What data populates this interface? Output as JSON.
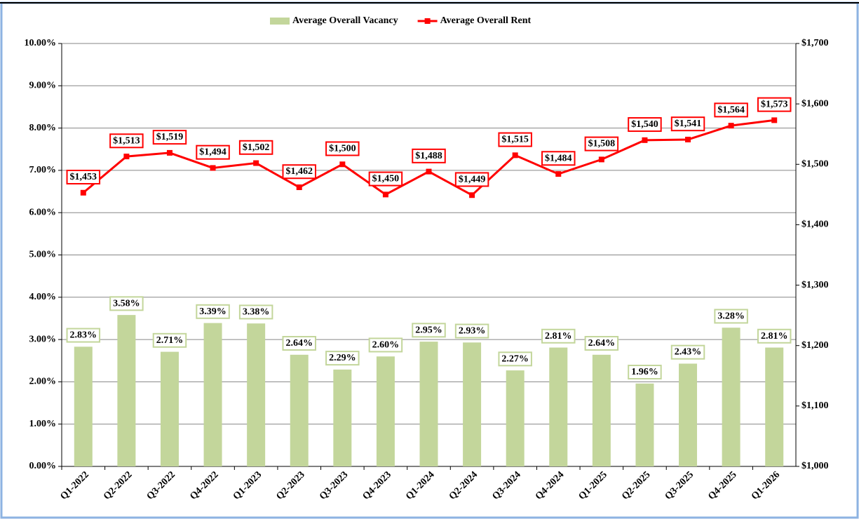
{
  "chart_data": {
    "type": "combo",
    "categories": [
      "Q1-2022",
      "Q2-2022",
      "Q3-2022",
      "Q4-2022",
      "Q1-2023",
      "Q2-2023",
      "Q3-2023",
      "Q4-2023",
      "Q1-2024",
      "Q2-2024",
      "Q3-2024",
      "Q4-2024",
      "Q1-2025",
      "Q2-2025",
      "Q3-2025",
      "Q4-2025",
      "Q1-2026"
    ],
    "series": [
      {
        "name": "Average Overall Vacancy",
        "type": "bar",
        "color": "#c3d69b",
        "values": [
          2.83,
          3.58,
          2.71,
          3.39,
          3.38,
          2.64,
          2.29,
          2.6,
          2.95,
          2.93,
          2.27,
          2.81,
          2.64,
          1.96,
          2.43,
          3.28,
          2.81
        ],
        "value_labels": [
          "2.83%",
          "3.58%",
          "2.71%",
          "3.39%",
          "3.38%",
          "2.64%",
          "2.29%",
          "2.60%",
          "2.95%",
          "2.93%",
          "2.27%",
          "2.81%",
          "2.64%",
          "1.96%",
          "2.43%",
          "3.28%",
          "2.81%"
        ]
      },
      {
        "name": "Average Overall Rent",
        "type": "line",
        "axis": "y2",
        "color": "#ff0000",
        "values": [
          1453,
          1513,
          1519,
          1494,
          1502,
          1462,
          1500,
          1450,
          1488,
          1449,
          1515,
          1484,
          1508,
          1540,
          1541,
          1564,
          1573
        ],
        "value_labels": [
          "$1,453",
          "$1,513",
          "$1,519",
          "$1,494",
          "$1,502",
          "$1,462",
          "$1,500",
          "$1,450",
          "$1,488",
          "$1,449",
          "$1,515",
          "$1,484",
          "$1,508",
          "$1,540",
          "$1,541",
          "$1,564",
          "$1,573"
        ]
      }
    ],
    "ylim": [
      0,
      10
    ],
    "yticks": [
      {
        "value": 0,
        "label": "0.00%"
      },
      {
        "value": 1,
        "label": "1.00%"
      },
      {
        "value": 2,
        "label": "2.00%"
      },
      {
        "value": 3,
        "label": "3.00%"
      },
      {
        "value": 4,
        "label": "4.00%"
      },
      {
        "value": 5,
        "label": "5.00%"
      },
      {
        "value": 6,
        "label": "6.00%"
      },
      {
        "value": 7,
        "label": "7.00%"
      },
      {
        "value": 8,
        "label": "8.00%"
      },
      {
        "value": 9,
        "label": "9.00%"
      },
      {
        "value": 10,
        "label": "10.00%"
      }
    ],
    "y2lim": [
      1000,
      1700
    ],
    "y2ticks": [
      {
        "value": 1000,
        "label": "$1,000"
      },
      {
        "value": 1100,
        "label": "$1,100"
      },
      {
        "value": 1200,
        "label": "$1,200"
      },
      {
        "value": 1300,
        "label": "$1,300"
      },
      {
        "value": 1400,
        "label": "$1,400"
      },
      {
        "value": 1500,
        "label": "$1,500"
      },
      {
        "value": 1600,
        "label": "$1,600"
      },
      {
        "value": 1700,
        "label": "$1,700"
      }
    ],
    "grid": true,
    "legend": "top"
  }
}
